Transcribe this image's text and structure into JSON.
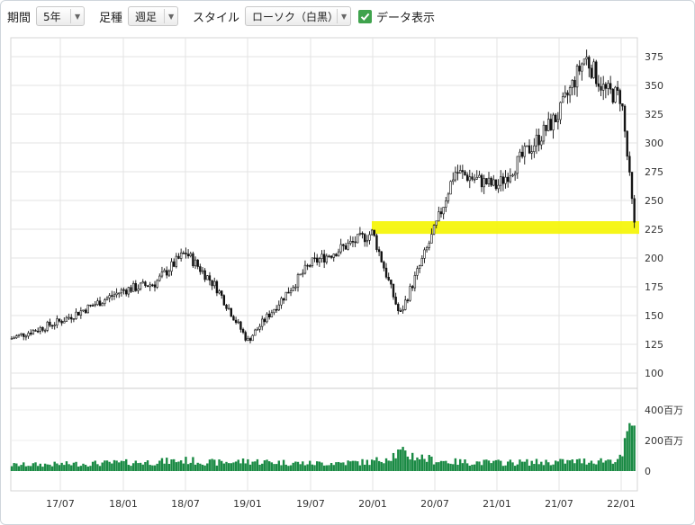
{
  "toolbar": {
    "period_label": "期間",
    "period_value": "5年",
    "candle_label": "足種",
    "candle_value": "週足",
    "style_label": "スタイル",
    "style_value": "ローソク（白黒）",
    "data_display_label": "データ表示",
    "data_display_checked": true
  },
  "chart_data": {
    "type": "candlestick",
    "x_tick_labels": [
      "17/07",
      "18/01",
      "18/07",
      "19/01",
      "19/07",
      "20/01",
      "20/07",
      "21/01",
      "21/07",
      "22/01"
    ],
    "y_tick_labels": [
      "375",
      "350",
      "325",
      "300",
      "275",
      "250",
      "225",
      "200",
      "175",
      "150",
      "125",
      "100"
    ],
    "y_range": [
      100,
      375
    ],
    "volume_tick_labels": [
      "400百万",
      "200百万",
      "0"
    ],
    "volume_range_millions": [
      0,
      400
    ],
    "highlight_band": {
      "from": 221,
      "to": 232,
      "color": "#f5f500"
    },
    "candle_color": "#111111",
    "volume_color": "#1a8a44",
    "grid": true,
    "weeks": [
      "2017/03",
      "2017/07",
      "2018/01",
      "2018/04",
      "2018/07",
      "2018/10",
      "2019/01",
      "2019/07",
      "2020/01",
      "2020/03",
      "2020/07",
      "2020/09",
      "2021/01",
      "2021/07",
      "2021/10",
      "2021/12",
      "2022/01",
      "2022/02"
    ],
    "close": [
      130,
      145,
      172,
      178,
      205,
      175,
      128,
      195,
      222,
      150,
      225,
      275,
      262,
      325,
      375,
      345,
      340,
      225
    ],
    "volume_millions": [
      40,
      45,
      55,
      60,
      70,
      55,
      65,
      50,
      60,
      120,
      70,
      60,
      55,
      60,
      65,
      70,
      80,
      380
    ]
  }
}
